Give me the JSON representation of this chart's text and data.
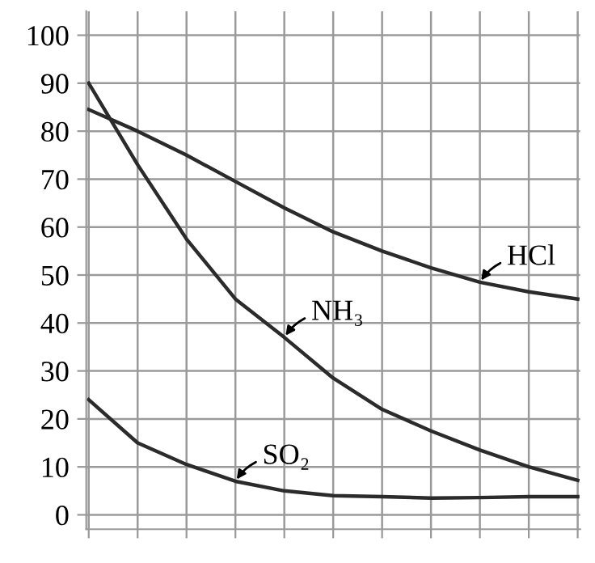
{
  "chart_data": {
    "type": "line",
    "categories": [
      null,
      null,
      null,
      null,
      null,
      null,
      null,
      null,
      null,
      null,
      null
    ],
    "series": [
      {
        "name": "HCl",
        "color": "#2b2b2b",
        "values": [
          84.5,
          80,
          75,
          69.5,
          64,
          59,
          55,
          51.5,
          48.5,
          46.5,
          45
        ]
      },
      {
        "name": "NH₃",
        "color": "#2b2b2b",
        "values": [
          90,
          73,
          57.5,
          45,
          37,
          28.5,
          22,
          17.5,
          13.5,
          10,
          7.2
        ]
      },
      {
        "name": "SO₂",
        "color": "#2b2b2b",
        "values": [
          24,
          15,
          10.5,
          7,
          5,
          4,
          3.8,
          3.5,
          3.6,
          3.8,
          3.8
        ]
      }
    ],
    "ylim": [
      -3,
      105
    ],
    "yticks": [
      0,
      10,
      20,
      30,
      40,
      50,
      60,
      70,
      80,
      90,
      100
    ],
    "tick_labels": "y",
    "grid": true,
    "marker": "none",
    "line_style": "solid"
  }
}
